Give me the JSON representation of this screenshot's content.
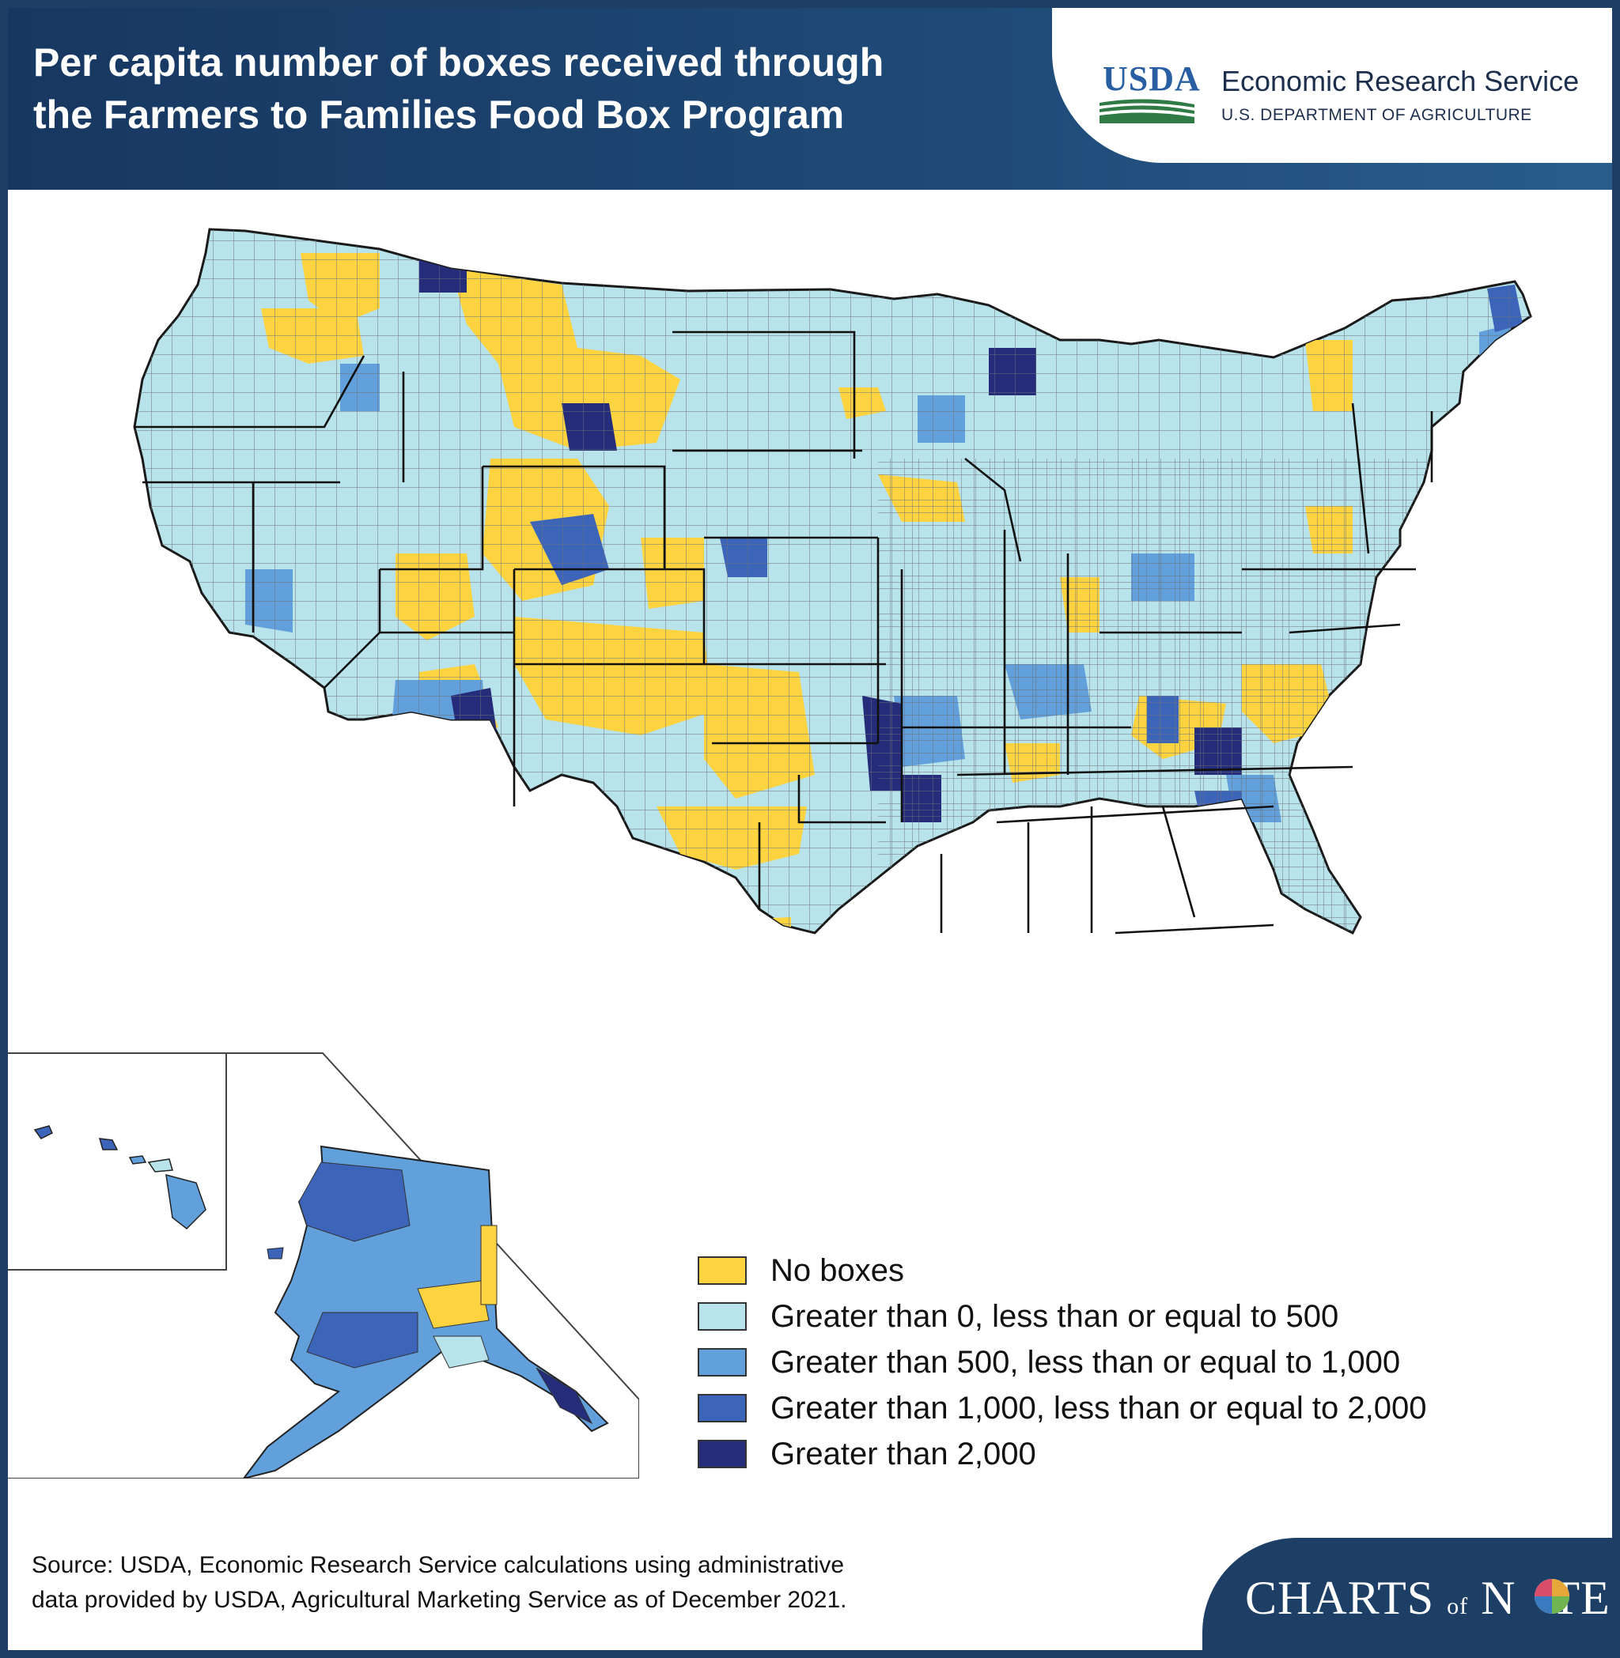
{
  "header": {
    "title_line1": "Per capita number of boxes received through",
    "title_line2": "the Farmers to Families Food Box Program"
  },
  "logo": {
    "usda": "USDA",
    "agency": "Economic Research Service",
    "department": "U.S. DEPARTMENT OF AGRICULTURE"
  },
  "map": {
    "type": "choropleth",
    "unit": "county",
    "region": "United States counties",
    "insets": [
      "Alaska",
      "Hawaii"
    ]
  },
  "legend": {
    "items": [
      {
        "label": "No boxes",
        "color": "#fdd33f"
      },
      {
        "label": "Greater than 0, less than or equal to 500",
        "color": "#b8e3ea"
      },
      {
        "label": "Greater than 500, less than or equal to 1,000",
        "color": "#62a0dc"
      },
      {
        "label": "Greater than 1,000, less than or equal to 2,000",
        "color": "#3c64b9"
      },
      {
        "label": "Greater than 2,000",
        "color": "#252c79"
      }
    ]
  },
  "source": {
    "line1": "Source: USDA, Economic Research Service calculations using administrative",
    "line2": "data provided by USDA, Agricultural Marketing Service as of December 2021."
  },
  "footer": {
    "brand_charts": "CHARTS",
    "brand_of": "of",
    "brand_note_n": "N",
    "brand_note_te": "TE"
  }
}
